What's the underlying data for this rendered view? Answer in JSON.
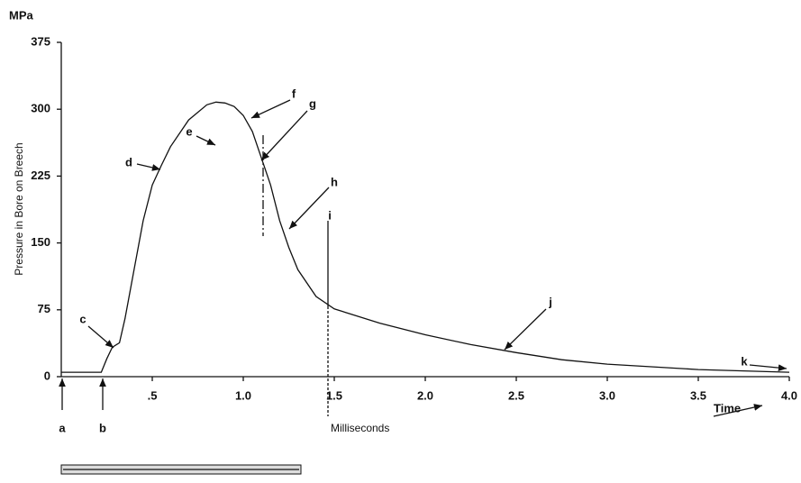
{
  "chart_data": {
    "type": "line",
    "y_unit": "MPa",
    "y_label": "Pressure in Bore on Breech",
    "x_label": "Time",
    "x_unit": "Milliseconds",
    "x": [
      0,
      0.22,
      0.25,
      0.28,
      0.32,
      0.35,
      0.4,
      0.45,
      0.5,
      0.55,
      0.6,
      0.7,
      0.8,
      0.85,
      0.9,
      0.95,
      1.0,
      1.05,
      1.1,
      1.15,
      1.2,
      1.25,
      1.3,
      1.4,
      1.5,
      1.75,
      2.0,
      2.25,
      2.5,
      2.75,
      3.0,
      3.5,
      4.0
    ],
    "series": [
      {
        "color": "#111111",
        "values": [
          5,
          5,
          20,
          33,
          38,
          65,
          120,
          175,
          215,
          237,
          258,
          288,
          305,
          308,
          307,
          303,
          293,
          275,
          245,
          215,
          175,
          145,
          120,
          90,
          76,
          60,
          47,
          36,
          27,
          19,
          14,
          8,
          5
        ]
      }
    ],
    "xlim": [
      0,
      4
    ],
    "ylim": [
      0,
      375
    ],
    "xticks": [
      {
        "value": 0.5,
        "label": ".5"
      },
      {
        "value": 1,
        "label": "1.0"
      },
      1.5,
      {
        "value": 2,
        "label": "2.0"
      },
      2.5,
      {
        "value": 3,
        "label": "3.0"
      },
      3.5,
      {
        "value": 4,
        "label": "4.0"
      }
    ],
    "yticks": [
      0,
      75,
      150,
      225,
      300,
      375
    ],
    "annotations": [
      "a",
      "b",
      "c",
      "d",
      "e",
      "f",
      "g",
      "h",
      "i",
      "j",
      "k"
    ]
  }
}
